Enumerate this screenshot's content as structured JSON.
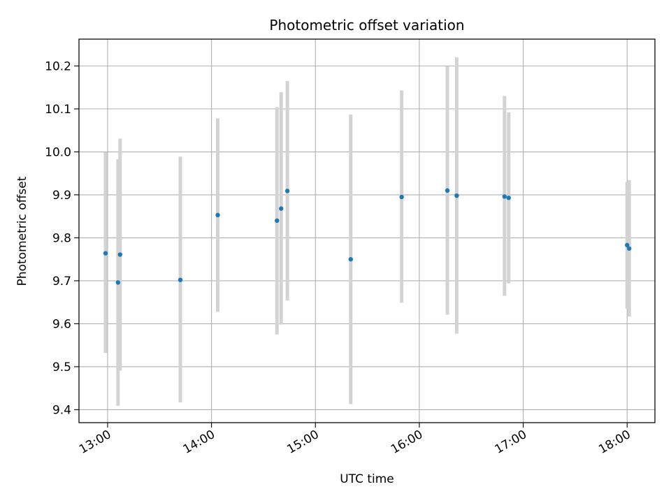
{
  "chart_data": {
    "type": "scatter",
    "title": "Photometric offset variation",
    "xlabel": "UTC time",
    "ylabel": "Photometric offset",
    "x_unit": "hours UTC",
    "xlim": [
      12.7245,
      18.2675
    ],
    "ylim": [
      9.3698,
      10.2624
    ],
    "x_ticks": [
      {
        "value": 13,
        "label": "13:00"
      },
      {
        "value": 14,
        "label": "14:00"
      },
      {
        "value": 15,
        "label": "15:00"
      },
      {
        "value": 16,
        "label": "16:00"
      },
      {
        "value": 17,
        "label": "17:00"
      },
      {
        "value": 18,
        "label": "18:00"
      }
    ],
    "y_ticks": [
      {
        "value": 9.4,
        "label": "9.4"
      },
      {
        "value": 9.5,
        "label": "9.5"
      },
      {
        "value": 9.6,
        "label": "9.6"
      },
      {
        "value": 9.7,
        "label": "9.7"
      },
      {
        "value": 9.8,
        "label": "9.8"
      },
      {
        "value": 9.9,
        "label": "9.9"
      },
      {
        "value": 10.0,
        "label": "10.0"
      },
      {
        "value": 10.1,
        "label": "10.1"
      },
      {
        "value": 10.2,
        "label": "10.2"
      }
    ],
    "grid": true,
    "colors": {
      "point": "#1f77b4",
      "errorbar": "#d3d3d3",
      "grid": "#b0b0b0",
      "axes": "#000000"
    },
    "points": [
      {
        "x": 12.98,
        "y": 9.764,
        "low": 9.532,
        "high": 9.999
      },
      {
        "x": 13.1,
        "y": 9.696,
        "low": 9.409,
        "high": 9.983
      },
      {
        "x": 13.12,
        "y": 9.761,
        "low": 9.491,
        "high": 10.031
      },
      {
        "x": 13.7,
        "y": 9.702,
        "low": 9.417,
        "high": 9.989
      },
      {
        "x": 14.06,
        "y": 9.853,
        "low": 9.628,
        "high": 10.078
      },
      {
        "x": 14.63,
        "y": 9.84,
        "low": 9.575,
        "high": 10.104
      },
      {
        "x": 14.67,
        "y": 9.868,
        "low": 9.598,
        "high": 10.139
      },
      {
        "x": 14.73,
        "y": 9.909,
        "low": 9.654,
        "high": 10.165
      },
      {
        "x": 15.34,
        "y": 9.75,
        "low": 9.413,
        "high": 10.087
      },
      {
        "x": 15.83,
        "y": 9.895,
        "low": 9.649,
        "high": 10.143
      },
      {
        "x": 16.27,
        "y": 9.91,
        "low": 9.621,
        "high": 10.199
      },
      {
        "x": 16.36,
        "y": 9.898,
        "low": 9.577,
        "high": 10.22
      },
      {
        "x": 16.82,
        "y": 9.896,
        "low": 9.665,
        "high": 10.13
      },
      {
        "x": 16.86,
        "y": 9.893,
        "low": 9.694,
        "high": 10.092
      },
      {
        "x": 18.0,
        "y": 9.783,
        "low": 9.635,
        "high": 9.93
      },
      {
        "x": 18.02,
        "y": 9.775,
        "low": 9.617,
        "high": 9.934
      }
    ]
  }
}
